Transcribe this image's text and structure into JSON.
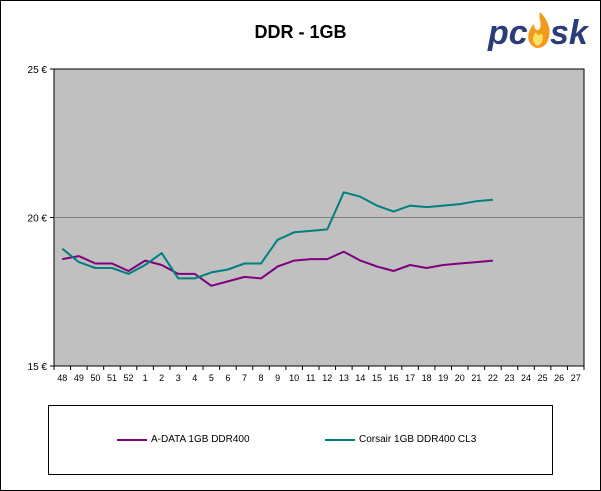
{
  "chart_data": {
    "type": "line",
    "title": "DDR - 1GB",
    "xlabel": "",
    "ylabel": "",
    "categories": [
      "48",
      "49",
      "50",
      "51",
      "52",
      "1",
      "2",
      "3",
      "4",
      "5",
      "6",
      "7",
      "8",
      "9",
      "10",
      "11",
      "12",
      "13",
      "14",
      "15",
      "16",
      "17",
      "18",
      "19",
      "20",
      "21",
      "22",
      "23",
      "24",
      "25",
      "26",
      "27"
    ],
    "y_tick_labels": [
      "15 €",
      "20 €",
      "25 €"
    ],
    "y_ticks": [
      15,
      20,
      25
    ],
    "ylim": [
      15,
      25
    ],
    "grid": "horizontal",
    "legend_position": "bottom",
    "plot_background": "#c0c0c0",
    "series": [
      {
        "name": "A-DATA 1GB DDR400",
        "color": "#800080",
        "values": [
          18.6,
          18.7,
          18.45,
          18.45,
          18.2,
          18.55,
          18.4,
          18.1,
          18.1,
          17.7,
          17.85,
          18.0,
          17.95,
          18.35,
          18.55,
          18.6,
          18.6,
          18.85,
          18.55,
          18.35,
          18.2,
          18.4,
          18.3,
          18.4,
          18.45,
          18.5,
          18.55,
          null,
          null,
          null,
          null,
          null
        ]
      },
      {
        "name": "Corsair 1GB DDR400 CL3",
        "color": "#008080",
        "values": [
          18.95,
          18.5,
          18.3,
          18.3,
          18.1,
          18.4,
          18.8,
          17.95,
          17.95,
          18.15,
          18.25,
          18.45,
          18.45,
          19.25,
          19.5,
          19.55,
          19.6,
          20.85,
          20.7,
          20.4,
          20.2,
          20.4,
          20.35,
          20.4,
          20.45,
          20.55,
          20.6,
          null,
          null,
          null,
          null,
          null
        ]
      }
    ]
  },
  "logo": {
    "text": "pcosk"
  }
}
